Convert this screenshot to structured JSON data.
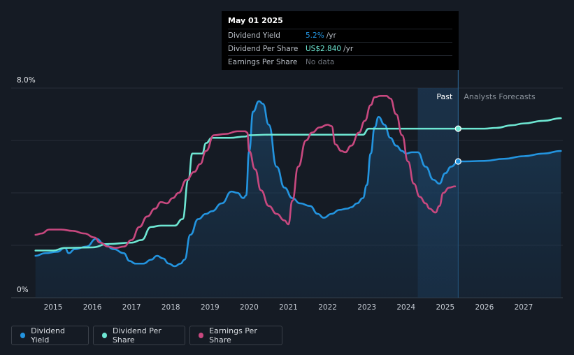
{
  "tooltip": {
    "date": "May 01 2025",
    "rows": [
      {
        "label": "Dividend Yield",
        "value": "5.2%",
        "unit": "/yr",
        "color": "#2394df"
      },
      {
        "label": "Dividend Per Share",
        "value": "US$2.840",
        "unit": "/yr",
        "color": "#6ee7d3"
      },
      {
        "label": "Earnings Per Share",
        "value": "No data",
        "unit": "",
        "color": "#6c727a"
      }
    ]
  },
  "periods": {
    "past": "Past",
    "forecast": "Analysts Forecasts"
  },
  "legend": [
    {
      "label": "Dividend Yield",
      "color": "#2394df"
    },
    {
      "label": "Dividend Per Share",
      "color": "#6ee7d3"
    },
    {
      "label": "Earnings Per Share",
      "color": "#c8487f"
    }
  ],
  "chart_data": {
    "type": "line",
    "x_ticks": [
      "2015",
      "2016",
      "2017",
      "2018",
      "2019",
      "2020",
      "2021",
      "2022",
      "2023",
      "2024",
      "2025",
      "2026",
      "2027"
    ],
    "y_ticks": [
      "0%",
      "8.0%"
    ],
    "ylim": [
      0,
      8
    ],
    "xlim": [
      2014.4,
      2027.95
    ],
    "grid": true,
    "past_end": 2025.33,
    "forecast_start": 2024.3,
    "series": [
      {
        "name": "Dividend Yield",
        "color": "#2394df",
        "fill": true,
        "points": [
          [
            2014.55,
            1.6
          ],
          [
            2014.8,
            1.7
          ],
          [
            2015.1,
            1.75
          ],
          [
            2015.3,
            1.9
          ],
          [
            2015.4,
            1.7
          ],
          [
            2015.55,
            1.85
          ],
          [
            2015.85,
            1.95
          ],
          [
            2016.1,
            2.25
          ],
          [
            2016.3,
            2.05
          ],
          [
            2016.55,
            1.85
          ],
          [
            2016.8,
            1.7
          ],
          [
            2016.95,
            1.4
          ],
          [
            2017.1,
            1.3
          ],
          [
            2017.3,
            1.3
          ],
          [
            2017.5,
            1.45
          ],
          [
            2017.65,
            1.6
          ],
          [
            2017.8,
            1.5
          ],
          [
            2017.95,
            1.3
          ],
          [
            2018.1,
            1.2
          ],
          [
            2018.25,
            1.3
          ],
          [
            2018.35,
            1.45
          ],
          [
            2018.5,
            2.4
          ],
          [
            2018.7,
            3.0
          ],
          [
            2018.9,
            3.2
          ],
          [
            2019.05,
            3.3
          ],
          [
            2019.3,
            3.6
          ],
          [
            2019.55,
            4.05
          ],
          [
            2019.7,
            4.0
          ],
          [
            2019.85,
            3.8
          ],
          [
            2019.92,
            3.9
          ],
          [
            2020.0,
            5.6
          ],
          [
            2020.1,
            7.1
          ],
          [
            2020.25,
            7.5
          ],
          [
            2020.35,
            7.4
          ],
          [
            2020.5,
            6.6
          ],
          [
            2020.7,
            5.0
          ],
          [
            2020.9,
            4.2
          ],
          [
            2021.1,
            3.8
          ],
          [
            2021.3,
            3.6
          ],
          [
            2021.55,
            3.5
          ],
          [
            2021.75,
            3.2
          ],
          [
            2021.9,
            3.05
          ],
          [
            2022.1,
            3.2
          ],
          [
            2022.3,
            3.35
          ],
          [
            2022.5,
            3.4
          ],
          [
            2022.6,
            3.45
          ],
          [
            2022.75,
            3.6
          ],
          [
            2022.9,
            3.8
          ],
          [
            2023.0,
            4.3
          ],
          [
            2023.1,
            5.5
          ],
          [
            2023.2,
            6.5
          ],
          [
            2023.3,
            6.9
          ],
          [
            2023.45,
            6.6
          ],
          [
            2023.6,
            6.1
          ],
          [
            2023.75,
            5.8
          ],
          [
            2023.9,
            5.6
          ],
          [
            2024.0,
            5.5
          ],
          [
            2024.15,
            5.55
          ],
          [
            2024.3,
            5.55
          ],
          [
            2024.5,
            5.0
          ],
          [
            2024.7,
            4.5
          ],
          [
            2024.85,
            4.35
          ],
          [
            2025.0,
            4.75
          ],
          [
            2025.15,
            5.0
          ],
          [
            2025.33,
            5.2
          ],
          [
            2025.5,
            5.2
          ],
          [
            2026.0,
            5.22
          ],
          [
            2026.5,
            5.3
          ],
          [
            2027.0,
            5.4
          ],
          [
            2027.5,
            5.5
          ],
          [
            2027.95,
            5.6
          ]
        ]
      },
      {
        "name": "Dividend Per Share",
        "color": "#6ee7d3",
        "fill": false,
        "points": [
          [
            2014.55,
            1.8
          ],
          [
            2015.0,
            1.8
          ],
          [
            2015.3,
            1.9
          ],
          [
            2016.0,
            1.92
          ],
          [
            2016.4,
            2.05
          ],
          [
            2017.0,
            2.1
          ],
          [
            2017.25,
            2.2
          ],
          [
            2017.5,
            2.7
          ],
          [
            2017.75,
            2.75
          ],
          [
            2018.1,
            2.75
          ],
          [
            2018.3,
            3.0
          ],
          [
            2018.45,
            4.5
          ],
          [
            2018.55,
            5.5
          ],
          [
            2018.65,
            5.5
          ],
          [
            2018.8,
            5.5
          ],
          [
            2018.9,
            5.9
          ],
          [
            2019.05,
            6.1
          ],
          [
            2019.5,
            6.1
          ],
          [
            2019.9,
            6.15
          ],
          [
            2020.0,
            6.2
          ],
          [
            2020.5,
            6.22
          ],
          [
            2021.0,
            6.22
          ],
          [
            2022.0,
            6.22
          ],
          [
            2022.9,
            6.22
          ],
          [
            2023.05,
            6.45
          ],
          [
            2024.0,
            6.45
          ],
          [
            2025.33,
            6.45
          ],
          [
            2025.6,
            6.45
          ],
          [
            2026.0,
            6.45
          ],
          [
            2026.3,
            6.48
          ],
          [
            2026.7,
            6.58
          ],
          [
            2027.0,
            6.65
          ],
          [
            2027.5,
            6.75
          ],
          [
            2027.95,
            6.85
          ]
        ]
      },
      {
        "name": "Earnings Per Share",
        "color": "#c8487f",
        "fill": false,
        "points": [
          [
            2014.55,
            2.4
          ],
          [
            2014.7,
            2.45
          ],
          [
            2014.9,
            2.6
          ],
          [
            2015.2,
            2.6
          ],
          [
            2015.5,
            2.55
          ],
          [
            2015.8,
            2.45
          ],
          [
            2016.05,
            2.3
          ],
          [
            2016.2,
            2.1
          ],
          [
            2016.4,
            1.95
          ],
          [
            2016.6,
            1.9
          ],
          [
            2016.8,
            1.95
          ],
          [
            2017.0,
            2.2
          ],
          [
            2017.2,
            2.7
          ],
          [
            2017.4,
            3.1
          ],
          [
            2017.6,
            3.4
          ],
          [
            2017.75,
            3.65
          ],
          [
            2017.9,
            3.6
          ],
          [
            2018.05,
            3.8
          ],
          [
            2018.2,
            4.0
          ],
          [
            2018.4,
            4.5
          ],
          [
            2018.6,
            4.8
          ],
          [
            2018.75,
            5.1
          ],
          [
            2018.9,
            5.6
          ],
          [
            2019.1,
            6.2
          ],
          [
            2019.4,
            6.25
          ],
          [
            2019.7,
            6.35
          ],
          [
            2019.9,
            6.35
          ],
          [
            2019.95,
            6.3
          ],
          [
            2020.0,
            5.6
          ],
          [
            2020.15,
            4.9
          ],
          [
            2020.3,
            4.1
          ],
          [
            2020.5,
            3.5
          ],
          [
            2020.7,
            3.2
          ],
          [
            2020.9,
            2.95
          ],
          [
            2021.0,
            2.8
          ],
          [
            2021.1,
            3.7
          ],
          [
            2021.25,
            5.0
          ],
          [
            2021.45,
            6.0
          ],
          [
            2021.6,
            6.3
          ],
          [
            2021.8,
            6.5
          ],
          [
            2022.0,
            6.6
          ],
          [
            2022.1,
            6.55
          ],
          [
            2022.2,
            5.85
          ],
          [
            2022.35,
            5.6
          ],
          [
            2022.45,
            5.55
          ],
          [
            2022.6,
            5.8
          ],
          [
            2022.8,
            6.3
          ],
          [
            2022.95,
            6.75
          ],
          [
            2023.1,
            7.35
          ],
          [
            2023.2,
            7.65
          ],
          [
            2023.35,
            7.7
          ],
          [
            2023.5,
            7.7
          ],
          [
            2023.6,
            7.6
          ],
          [
            2023.75,
            7.0
          ],
          [
            2023.9,
            6.2
          ],
          [
            2024.05,
            5.2
          ],
          [
            2024.2,
            4.35
          ],
          [
            2024.35,
            3.85
          ],
          [
            2024.5,
            3.6
          ],
          [
            2024.6,
            3.4
          ],
          [
            2024.75,
            3.25
          ],
          [
            2024.85,
            3.5
          ],
          [
            2024.95,
            4.0
          ],
          [
            2025.1,
            4.2
          ],
          [
            2025.25,
            4.25
          ]
        ]
      }
    ],
    "markers": [
      {
        "series": "Dividend Per Share",
        "x": 2025.33,
        "y": 6.45
      },
      {
        "series": "Dividend Yield",
        "x": 2025.33,
        "y": 5.2
      }
    ]
  }
}
